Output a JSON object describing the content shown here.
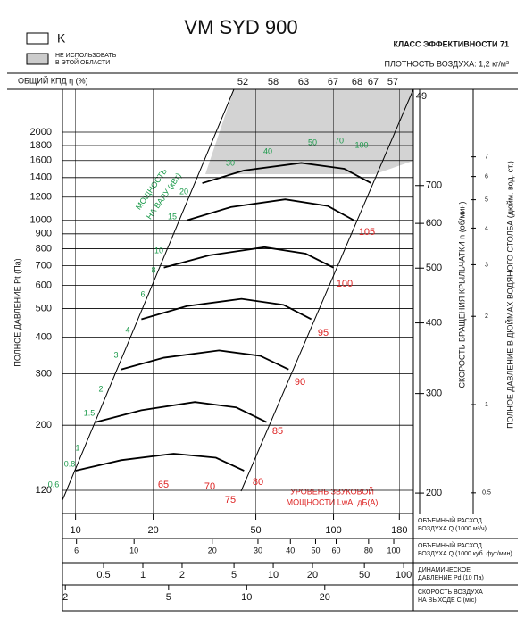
{
  "chart_data": {
    "type": "line",
    "title": "VM SYD 900",
    "legend_k": "K",
    "legend_no_use": [
      "НЕ ИСПОЛЬЗОВАТЬ",
      "В ЭТОЙ ОБЛАСТИ"
    ],
    "efficiency_class": "КЛАСС ЭФФЕКТИВНОСТИ 71",
    "air_density": "ПЛОТНОСТЬ ВОЗДУХА: 1,2 кг/м³",
    "efficiency_title": "ОБЩИЙ КПД η (%)",
    "efficiency_labels": [
      52,
      58,
      63,
      67,
      68,
      67,
      57,
      49
    ],
    "y_title": "ПОЛНОЕ ДАВЛЕНИЕ Pt (Па)",
    "rpm_title": "СКОРОСТЬ ВРАЩЕНИЯ КРЫЛЬЧАТКИ n (об/мин)",
    "inch_title": "ПОЛНОЕ ДАВЛЕНИЕ В ДЮЙМАХ ВОДЯНОГО СТОЛБА (дюйм. вод. ст.)",
    "power_title": [
      "МОЩНОСТЬ",
      "НА ВАЛУ (кВт)"
    ],
    "power_labels": [
      0.6,
      0.8,
      1,
      1.5,
      2,
      3,
      4,
      6,
      8,
      10,
      15,
      20,
      30,
      40,
      50,
      70,
      100
    ],
    "noise_title": [
      "УРОВЕНЬ ЗВУКОВОЙ",
      "МОЩНОСТИ LwA, дБ(A)"
    ],
    "noise_labels": [
      65,
      70,
      75,
      80,
      85,
      90,
      95,
      100,
      105
    ],
    "log_scale": true,
    "grid": true,
    "ylim": [
      100,
      2800
    ],
    "yticks": [
      120,
      200,
      300,
      400,
      500,
      600,
      700,
      800,
      900,
      1000,
      1200,
      1400,
      1600,
      1800,
      2000
    ],
    "xlim": [
      8.9,
      204
    ],
    "xticks": [
      10,
      20,
      50,
      100,
      180
    ],
    "x_title": [
      "ОБЪЕМНЫЙ РАСХОД",
      "ВОЗДУХА Q (1000 м³/ч)"
    ],
    "rpm_lim": [
      184,
      1036
    ],
    "rpm_ticks": [
      200,
      300,
      400,
      500,
      600,
      700
    ],
    "inch_lim": [
      0.425,
      11.9
    ],
    "inch_ticks": [
      0.5,
      1,
      2,
      3,
      4,
      5,
      6,
      7
    ],
    "cfm_lim": [
      5.3,
      119
    ],
    "cfm_ticks": [
      6,
      10,
      20,
      30,
      40,
      50,
      60,
      80,
      100
    ],
    "cfm_title": [
      "ОБЪЕМНЫЙ РАСХОД",
      "ВОЗДУХА Q (1000 куб. фут/мин)"
    ],
    "pd_lim": [
      0.242,
      118.7
    ],
    "pd_ticks": [
      0.5,
      1,
      2,
      5,
      10,
      20,
      50,
      100
    ],
    "pd_title": [
      "ДИНАМИЧЕСКОЕ",
      "ДАВЛЕНИЕ Pd (10 Па)"
    ],
    "vel_lim": [
      1.95,
      43.9
    ],
    "vel_ticks": [
      2,
      5,
      10,
      20
    ],
    "vel_title": [
      "СКОРОСТЬ ВОЗДУХА",
      "НА ВЫХОДЕ C (м/с)"
    ],
    "series": [
      {
        "color": "#000000",
        "x": [
          31,
          45,
          75,
          110,
          140
        ],
        "values": [
          1340,
          1480,
          1570,
          1500,
          1340
        ]
      },
      {
        "color": "#000000",
        "x": [
          27,
          40,
          65,
          95,
          120
        ],
        "values": [
          1000,
          1110,
          1180,
          1120,
          1000
        ]
      },
      {
        "color": "#000000",
        "x": [
          22,
          33,
          54,
          78,
          100
        ],
        "values": [
          690,
          760,
          810,
          770,
          690
        ]
      },
      {
        "color": "#000000",
        "x": [
          18,
          27,
          44,
          64,
          82
        ],
        "values": [
          460,
          510,
          540,
          515,
          460
        ]
      },
      {
        "color": "#000000",
        "x": [
          15,
          22,
          36,
          52,
          67
        ],
        "values": [
          310,
          340,
          360,
          345,
          310
        ]
      },
      {
        "color": "#000000",
        "x": [
          12,
          18,
          29,
          42,
          55
        ],
        "values": [
          205,
          225,
          240,
          230,
          205
        ]
      },
      {
        "color": "#000000",
        "x": [
          10,
          15,
          24,
          35,
          45
        ],
        "values": [
          140,
          152,
          160,
          155,
          140
        ]
      }
    ]
  }
}
